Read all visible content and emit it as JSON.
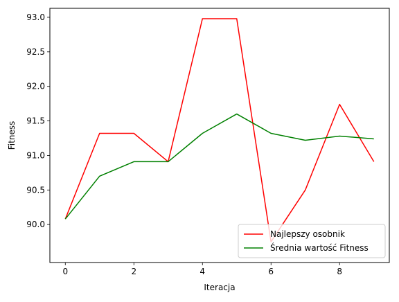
{
  "chart_data": {
    "type": "line",
    "title": "",
    "xlabel": "Iteracja",
    "ylabel": "Fitness",
    "xlim": [
      -0.45,
      9.45
    ],
    "ylim": [
      89.45,
      93.13
    ],
    "grid": false,
    "legend_position": "lower-right",
    "x": [
      0,
      1,
      2,
      3,
      4,
      5,
      6,
      7,
      8,
      9
    ],
    "xticks": [
      0,
      2,
      4,
      6,
      8
    ],
    "yticks": [
      90.0,
      90.5,
      91.0,
      91.5,
      92.0,
      92.5,
      93.0
    ],
    "xtick_labels": [
      "0",
      "2",
      "4",
      "6",
      "8"
    ],
    "ytick_labels": [
      "90.0",
      "90.5",
      "91.0",
      "91.5",
      "92.0",
      "92.5",
      "93.0"
    ],
    "series": [
      {
        "name": "Najlepszy osobnik",
        "color": "#ff0000",
        "values": [
          90.08,
          91.32,
          91.32,
          90.91,
          92.98,
          92.98,
          89.75,
          90.5,
          91.74,
          90.91
        ]
      },
      {
        "name": "Średnia wartość Fitness",
        "color": "#008000",
        "values": [
          90.08,
          90.7,
          90.91,
          90.91,
          91.32,
          91.6,
          91.32,
          91.22,
          91.28,
          91.24
        ]
      }
    ]
  }
}
